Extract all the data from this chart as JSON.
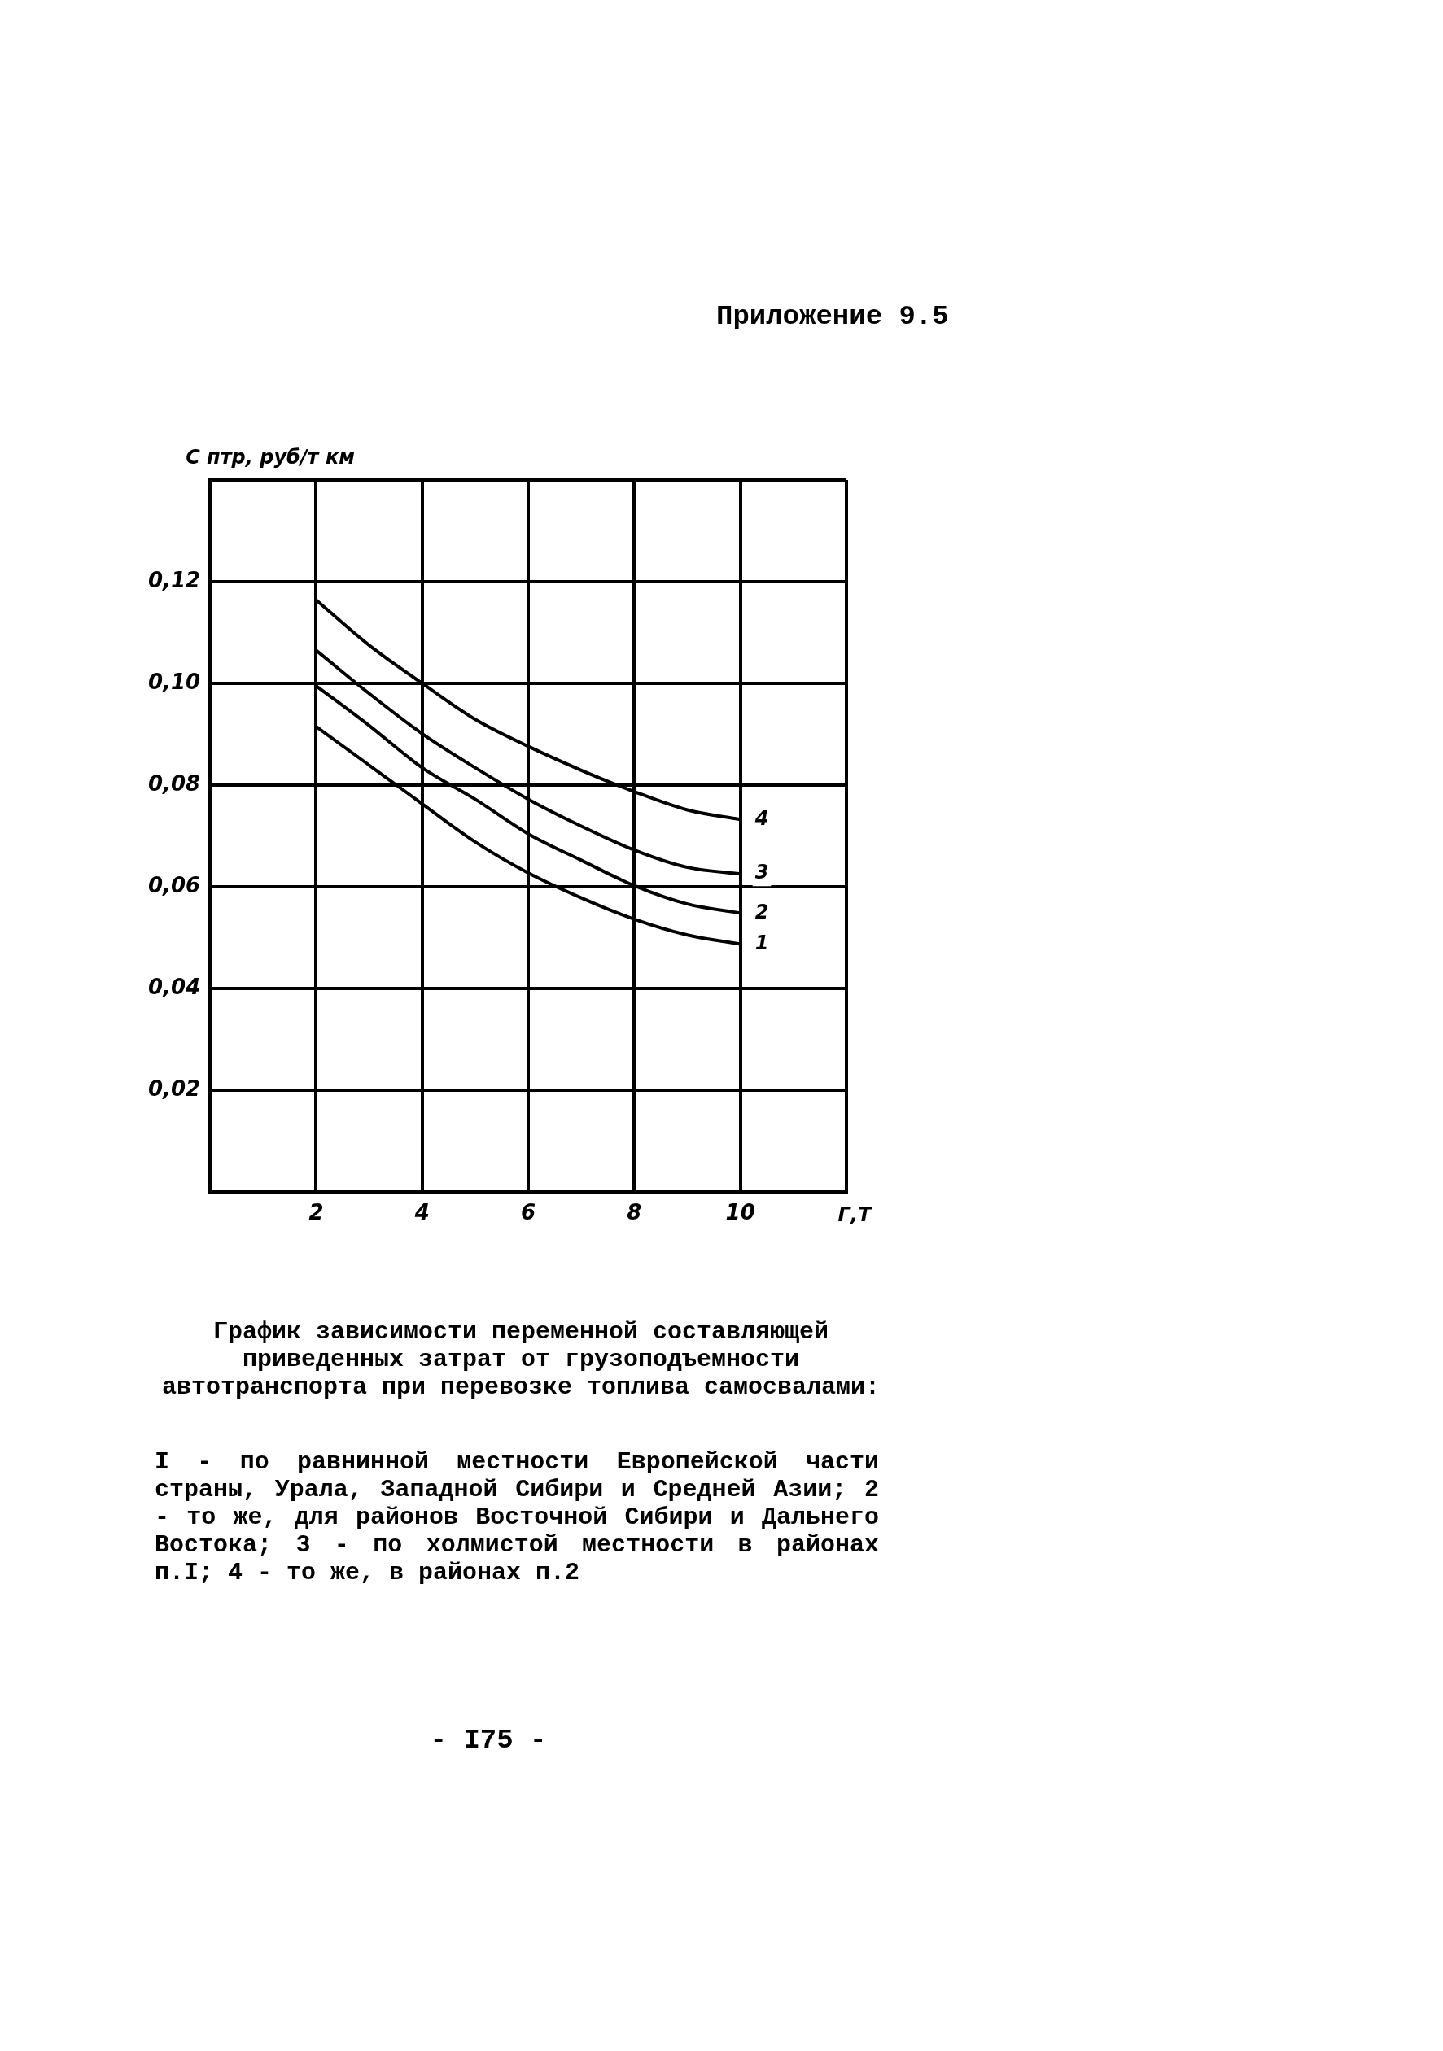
{
  "chart_data": {
    "type": "line",
    "title": "График зависимости переменной составляющей приведенных затрат от грузоподъемности автотранспорта при перевозке топлива самосвалами:",
    "xlabel": "Г,Т",
    "ylabel": "С птр, руб/т км",
    "annotations": [
      "Приложение 9.5",
      "I - по равнинной местности Европейской части страны, Урала, Западной Сибири и Средней Азии; 2 - то же, для районов Восточной Сибири и Дальнего Востока; 3 - по холмистой местности в районах п.I; 4 - то же, в районах п.2",
      "- I75 -"
    ],
    "x": [
      2,
      3,
      4,
      5,
      6,
      7,
      8,
      9,
      10
    ],
    "series": [
      {
        "name": "1",
        "color": "#000000",
        "values": [
          0.0915,
          0.0839,
          0.0763,
          0.0688,
          0.0627,
          0.0578,
          0.0536,
          0.0505,
          0.0487
        ]
      },
      {
        "name": "2",
        "color": "#000000",
        "values": [
          0.0995,
          0.0917,
          0.0834,
          0.0772,
          0.0704,
          0.0652,
          0.0602,
          0.0566,
          0.0548
        ]
      },
      {
        "name": "3",
        "color": "#000000",
        "values": [
          0.1065,
          0.098,
          0.0901,
          0.0834,
          0.0772,
          0.0719,
          0.0672,
          0.0638,
          0.0625
        ]
      },
      {
        "name": "4",
        "color": "#000000",
        "values": [
          0.1164,
          0.1075,
          0.1,
          0.0929,
          0.0876,
          0.0829,
          0.0787,
          0.0751,
          0.0732
        ]
      }
    ],
    "xlim": [
      0,
      12
    ],
    "xticks": [
      {
        "value": 0,
        "label": null
      },
      2,
      4,
      6,
      8,
      10,
      {
        "value": 12,
        "label": null
      }
    ],
    "ylim": [
      0,
      0.14
    ],
    "yticks": [
      {
        "value": 0,
        "label": null
      },
      {
        "value": 0.02,
        "label": "0,02"
      },
      {
        "value": 0.04,
        "label": "0,04"
      },
      {
        "value": 0.06,
        "label": "0,06"
      },
      {
        "value": 0.08,
        "label": "0,08"
      },
      {
        "value": 0.1,
        "label": "0,10"
      },
      {
        "value": 0.12,
        "label": "0,12"
      },
      {
        "value": 0.14,
        "label": null
      }
    ],
    "grid": true,
    "legend": false,
    "marker": "none",
    "line_style": "solid"
  }
}
